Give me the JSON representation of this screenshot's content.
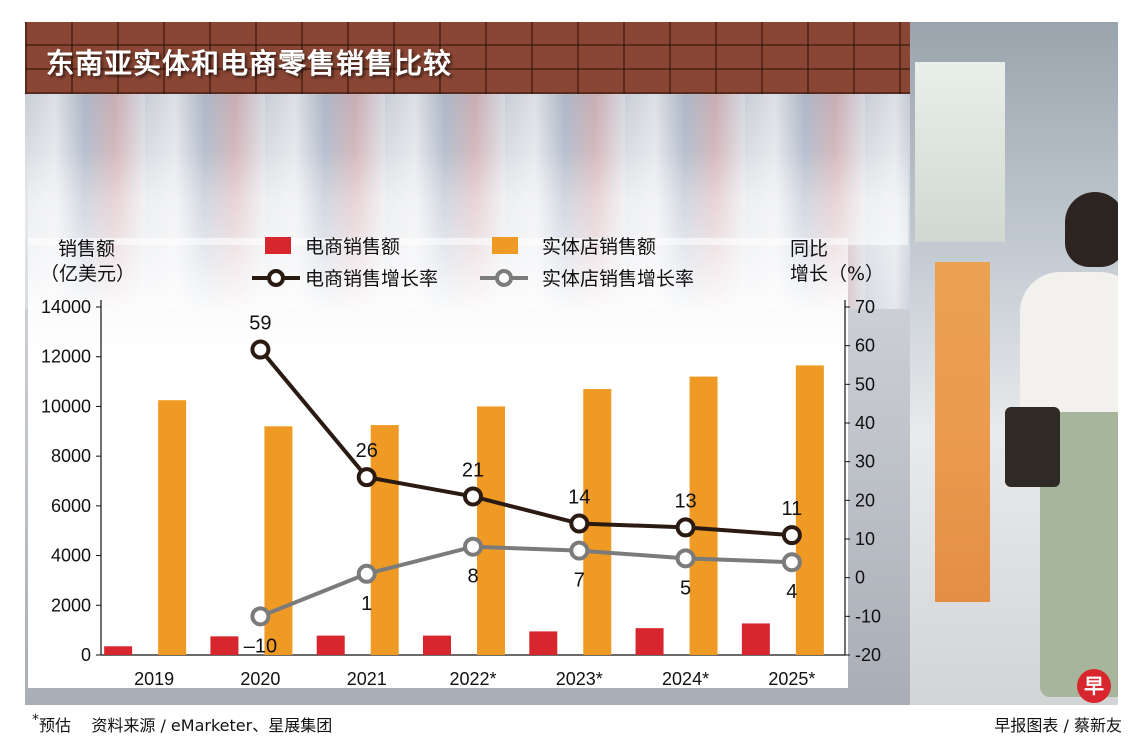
{
  "title": "东南亚实体和电商零售销售比较",
  "footer": {
    "note_star": "*",
    "note": "预估",
    "source": "资料来源 / eMarketer、星展集团",
    "credit": "早报图表 / 蔡新友"
  },
  "logo_text": "早",
  "colors": {
    "ecommerce_bar": "#d8262e",
    "store_bar": "#ef9a24",
    "ecommerce_line": "#2a1a12",
    "store_line": "#7b7b7b"
  },
  "chart_data": {
    "type": "bar",
    "categories": [
      "2019",
      "2020",
      "2021",
      "2022*",
      "2023*",
      "2024*",
      "2025*"
    ],
    "y_left": {
      "label_line1": "销售额",
      "label_line2": "（亿美元）",
      "ylim": [
        0,
        14000
      ],
      "ticks": [
        "0",
        "2000",
        "4000",
        "6000",
        "8000",
        "10000",
        "12000",
        "14000"
      ]
    },
    "y_right": {
      "label_line1": "同比",
      "label_line2": "增长（%）",
      "ylim": [
        -20,
        70
      ],
      "ticks": [
        "-20",
        "-10",
        "0",
        "10",
        "20",
        "30",
        "40",
        "50",
        "60",
        "70"
      ]
    },
    "series": [
      {
        "name": "电商销售额",
        "type": "bar",
        "axis": "left",
        "values": [
          350,
          750,
          780,
          780,
          950,
          1080,
          1270
        ]
      },
      {
        "name": "实体店销售额",
        "type": "bar",
        "axis": "left",
        "values": [
          10250,
          9200,
          9250,
          10000,
          10700,
          11200,
          11650
        ]
      },
      {
        "name": "电商销售增长率",
        "type": "line",
        "axis": "right",
        "values": [
          null,
          59,
          26,
          21,
          14,
          13,
          11
        ],
        "labels": [
          "",
          "59",
          "26",
          "21",
          "14",
          "13",
          "11"
        ]
      },
      {
        "name": "实体店销售增长率",
        "type": "line",
        "axis": "right",
        "values": [
          null,
          -10,
          1,
          8,
          7,
          5,
          4
        ],
        "labels": [
          "",
          "–10",
          "1",
          "8",
          "7",
          "5",
          "4"
        ]
      }
    ],
    "legend_position": "top",
    "grid": false
  }
}
